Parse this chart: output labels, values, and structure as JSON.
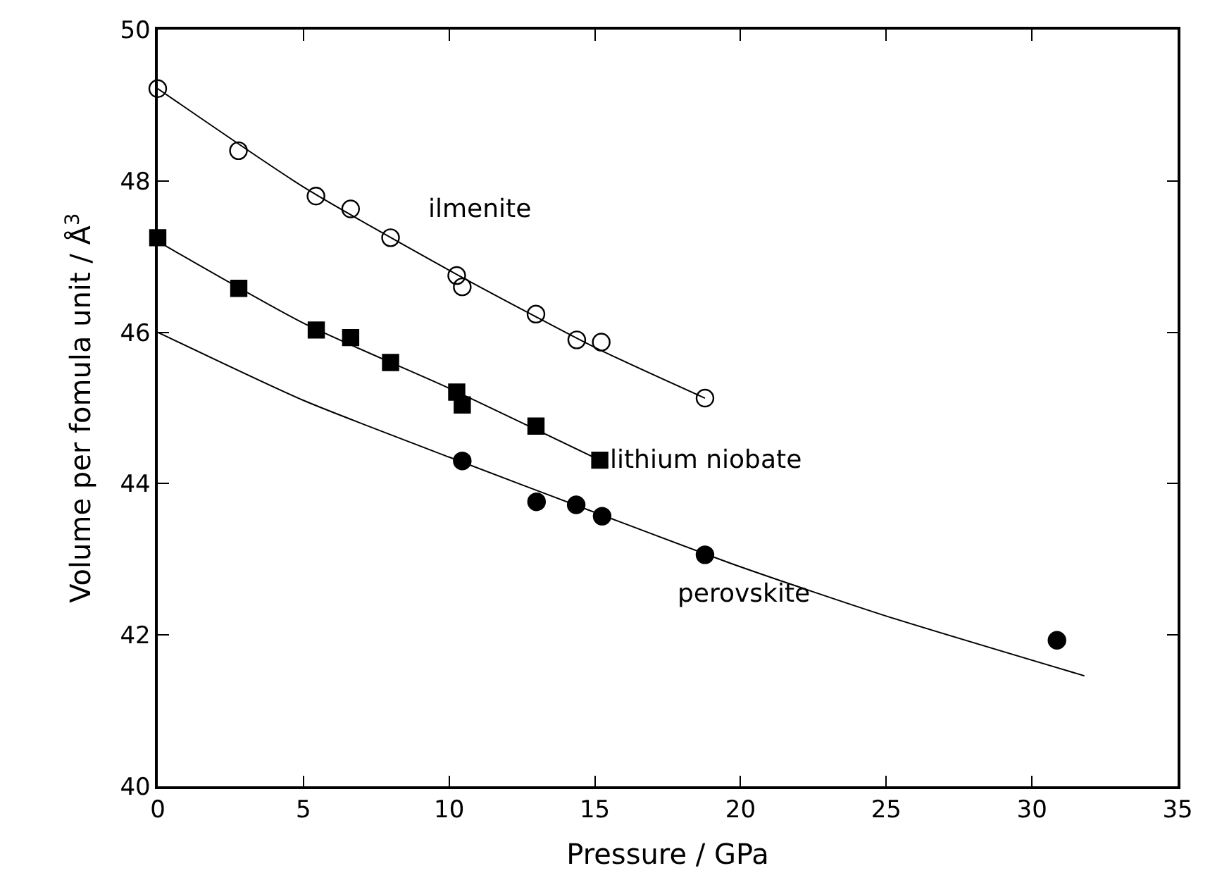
{
  "chart_data": {
    "type": "scatter",
    "xlabel": "Pressure / GPa",
    "ylabel": "Volume per fomula unit / Å$^{3}$",
    "xlim": [
      0,
      35
    ],
    "xticks": [
      0,
      5,
      10,
      15,
      20,
      25,
      30,
      35
    ],
    "ylim": [
      40,
      50
    ],
    "yticks": [
      40,
      42,
      44,
      46,
      48,
      50
    ],
    "series": [
      {
        "marker": "circle-open",
        "color": "#000000",
        "x": [
          0,
          2.77,
          5.43,
          6.62,
          7.99,
          10.26,
          10.45,
          12.98,
          14.38,
          15.22,
          18.78
        ],
        "values": [
          49.22,
          48.4,
          47.8,
          47.63,
          47.25,
          46.75,
          46.6,
          46.24,
          45.9,
          45.87,
          45.13
        ]
      },
      {
        "marker": "square",
        "color": "#000000",
        "x": [
          0,
          2.78,
          5.44,
          6.62,
          7.99,
          10.26,
          10.45,
          12.98,
          15.17
        ],
        "values": [
          47.25,
          46.58,
          46.03,
          45.93,
          45.6,
          45.21,
          45.04,
          44.76,
          44.31
        ]
      },
      {
        "marker": "circle",
        "color": "#000000",
        "x": [
          10.45,
          13.0,
          14.36,
          15.25,
          18.78,
          30.86
        ],
        "values": [
          44.3,
          43.76,
          43.72,
          43.57,
          43.06,
          41.93
        ]
      },
      {
        "type": "line",
        "color": "#000000",
        "line_style": "solid",
        "x": [
          0,
          5,
          10,
          15,
          18.78
        ],
        "values": [
          49.22,
          47.92,
          46.82,
          45.8,
          45.13
        ]
      },
      {
        "type": "line",
        "color": "#000000",
        "line_style": "solid",
        "x": [
          0,
          5,
          10,
          15.17
        ],
        "values": [
          47.2,
          46.12,
          45.26,
          44.31
        ]
      },
      {
        "type": "line",
        "color": "#000000",
        "line_style": "solid",
        "x": [
          0,
          5,
          10,
          15,
          20,
          25,
          31.8
        ],
        "values": [
          46.0,
          45.1,
          44.35,
          43.62,
          42.9,
          42.25,
          41.46
        ]
      }
    ],
    "annotations": [
      "ilmenite",
      "lithium niobate",
      "perovskite"
    ]
  }
}
